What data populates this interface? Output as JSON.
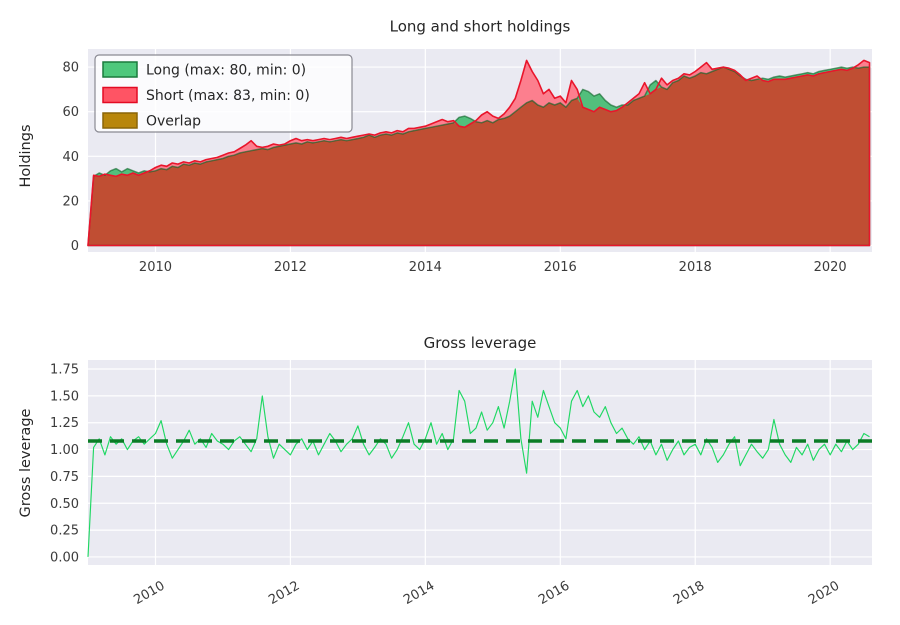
{
  "figure": {
    "background": "#ffffff",
    "axes_background": "#eaeaf2",
    "grid_color": "#ffffff",
    "title_color": "#262626",
    "tick_color": "#3b3b3b"
  },
  "chart_data": [
    {
      "type": "area",
      "title": "Long and short holdings",
      "ylabel": "Holdings",
      "xlabel": "",
      "grid": true,
      "legend_position": "upper left",
      "x_start": 2009.0,
      "x_step": 0.083333,
      "xlim": [
        2009.0,
        2020.62
      ],
      "ylim": [
        -2.9,
        88.1
      ],
      "x_ticks": [
        2010,
        2012,
        2014,
        2016,
        2018,
        2020
      ],
      "x_tick_labels": [
        "2010",
        "2012",
        "2014",
        "2016",
        "2018",
        "2020"
      ],
      "y_ticks": [
        0,
        20,
        40,
        60,
        80
      ],
      "y_tick_labels": [
        "0",
        "20",
        "40",
        "60",
        "80"
      ],
      "colors": {
        "overlap_fill": "#c04e33",
        "long_fill": "#52bf7c",
        "short_fill": "#fc7f8e",
        "long_edge": "rgba(15,98,40,0.62)",
        "short_edge": "#e9152b"
      },
      "legend": [
        {
          "label": "Long (max: 80, min: 0)",
          "fill": "#4ec87c",
          "edge": "#1a7a3c"
        },
        {
          "label": "Short (max: 83, min: 0)",
          "fill": "#ff5464",
          "edge": "#e30b23"
        },
        {
          "label": "Overlap",
          "fill": "#b8860b",
          "edge": "#8a6508"
        }
      ],
      "series": [
        {
          "name": "Long",
          "max": 80,
          "min": 0,
          "values": [
            0,
            31,
            32.5,
            31.5,
            33.5,
            34.5,
            33,
            34.5,
            33.5,
            32.5,
            33.5,
            33,
            33.5,
            34.5,
            34,
            35.5,
            35,
            36.5,
            36,
            37,
            36.5,
            37.5,
            38,
            38.5,
            39,
            40,
            40.5,
            41.5,
            42,
            42.5,
            43,
            43.5,
            43,
            44,
            44.5,
            45,
            45.5,
            46,
            45.5,
            46.5,
            46,
            46.5,
            47,
            46.5,
            47,
            47.5,
            47,
            47.5,
            48,
            48.5,
            49.5,
            48.5,
            49.5,
            50,
            49.5,
            50.5,
            50,
            51,
            51.5,
            52,
            52.5,
            53,
            53.5,
            54,
            54.5,
            55,
            57.5,
            58,
            57,
            55.5,
            55,
            56,
            55,
            56.5,
            57,
            58,
            60,
            62,
            64,
            65,
            63,
            62,
            64,
            63,
            64,
            62,
            65,
            66,
            70,
            69,
            67,
            68,
            65,
            63,
            62,
            63,
            63,
            65,
            66,
            67,
            72,
            74,
            71,
            70,
            73,
            74,
            76,
            75,
            76,
            77.5,
            77,
            78,
            79,
            80,
            79,
            78,
            76,
            74.5,
            74,
            74.5,
            75,
            74.5,
            75.5,
            76,
            75.5,
            76,
            76.5,
            77,
            77.5,
            77,
            78,
            78.5,
            79,
            79.5,
            80,
            79.5,
            80,
            79.5,
            80,
            80
          ]
        },
        {
          "name": "Short",
          "max": 83,
          "min": 0,
          "values": [
            0,
            31.5,
            31,
            32,
            31.5,
            31,
            32,
            31.5,
            32.5,
            31.5,
            32.5,
            33.5,
            35,
            36,
            35.5,
            37,
            36.5,
            37.5,
            37,
            38,
            37.5,
            38.5,
            39,
            39.5,
            40.5,
            41.5,
            42,
            43.5,
            45,
            47,
            44.5,
            44,
            44.5,
            45.5,
            45,
            45.5,
            47,
            48,
            47,
            47.5,
            47,
            47.5,
            48,
            47.5,
            48,
            48.5,
            48,
            48.5,
            49,
            49.5,
            50,
            49.5,
            50.5,
            51,
            50.5,
            51.5,
            51,
            52.5,
            52.5,
            53,
            53.5,
            54.5,
            55.5,
            56.5,
            55.5,
            56,
            53.5,
            53,
            54.5,
            56,
            58.5,
            60,
            58,
            57,
            59,
            62,
            66,
            74,
            83,
            78,
            74,
            68,
            70,
            66,
            67,
            64,
            74,
            70,
            62,
            61,
            60,
            62,
            61,
            60,
            60.5,
            62,
            64,
            66,
            68,
            73,
            68,
            70,
            75,
            72,
            74,
            75,
            77,
            76.5,
            78,
            80,
            82,
            79,
            79.5,
            80,
            79.5,
            78.5,
            76.5,
            74,
            75,
            76,
            74,
            73.5,
            74.5,
            74.5,
            74.5,
            75,
            75.5,
            76,
            76.5,
            76,
            77,
            77.5,
            78,
            78.5,
            79,
            78.5,
            79.5,
            81,
            83,
            82
          ]
        }
      ]
    },
    {
      "type": "line",
      "title": "Gross leverage",
      "ylabel": "Gross leverage",
      "xlabel": "",
      "grid": true,
      "x_start": 2009.0,
      "x_step": 0.083333,
      "xlim": [
        2009.0,
        2020.62
      ],
      "ylim": [
        -0.075,
        1.834
      ],
      "x_ticks": [
        2010,
        2012,
        2014,
        2016,
        2018,
        2020
      ],
      "x_tick_labels": [
        "2010",
        "2012",
        "2014",
        "2016",
        "2018",
        "2020"
      ],
      "y_ticks": [
        0.0,
        0.25,
        0.5,
        0.75,
        1.0,
        1.25,
        1.5,
        1.75
      ],
      "y_tick_labels": [
        "0.00",
        "0.25",
        "0.50",
        "0.75",
        "1.00",
        "1.25",
        "1.50",
        "1.75"
      ],
      "mean_line": 1.08,
      "colors": {
        "line": "#1fd863",
        "mean": "#0b7c26"
      },
      "series": [
        {
          "name": "Gross leverage",
          "values": [
            0,
            1.02,
            1.1,
            0.95,
            1.12,
            1.05,
            1.1,
            1.0,
            1.08,
            1.12,
            1.05,
            1.1,
            1.15,
            1.27,
            1.05,
            0.92,
            1.0,
            1.08,
            1.18,
            1.05,
            1.1,
            1.02,
            1.15,
            1.08,
            1.05,
            1.0,
            1.08,
            1.12,
            1.05,
            0.98,
            1.1,
            1.5,
            1.12,
            0.92,
            1.05,
            1.0,
            0.95,
            1.05,
            1.1,
            1.0,
            1.08,
            0.95,
            1.05,
            1.15,
            1.08,
            0.98,
            1.05,
            1.1,
            1.22,
            1.05,
            0.95,
            1.02,
            1.1,
            1.05,
            0.92,
            1.0,
            1.12,
            1.25,
            1.05,
            1.0,
            1.1,
            1.25,
            1.05,
            1.15,
            1.0,
            1.1,
            1.55,
            1.45,
            1.15,
            1.2,
            1.35,
            1.18,
            1.25,
            1.4,
            1.2,
            1.45,
            1.75,
            1.1,
            0.78,
            1.45,
            1.3,
            1.55,
            1.4,
            1.25,
            1.2,
            1.1,
            1.45,
            1.55,
            1.4,
            1.5,
            1.35,
            1.3,
            1.4,
            1.25,
            1.15,
            1.2,
            1.1,
            1.05,
            1.12,
            1.0,
            1.08,
            0.95,
            1.05,
            0.9,
            1.0,
            1.08,
            0.95,
            1.02,
            1.05,
            0.95,
            1.1,
            1.02,
            0.88,
            0.95,
            1.05,
            1.12,
            0.85,
            0.95,
            1.05,
            0.98,
            0.92,
            1.0,
            1.28,
            1.05,
            0.95,
            0.88,
            1.02,
            0.95,
            1.05,
            0.9,
            1.0,
            1.05,
            0.95,
            1.05,
            0.98,
            1.08,
            1.0,
            1.05,
            1.15,
            1.12
          ]
        }
      ]
    }
  ]
}
